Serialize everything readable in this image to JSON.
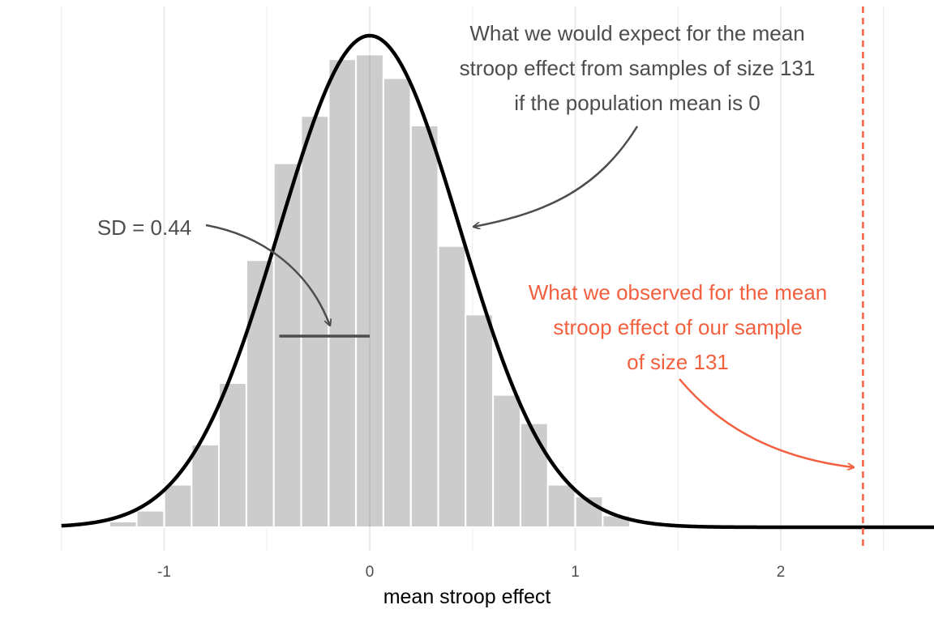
{
  "chart_data": {
    "type": "bar",
    "xlabel": "mean stroop effect",
    "ylabel": "",
    "title": "",
    "xlim": [
      -1.5,
      2.5
    ],
    "x_ticks": [
      -1,
      0,
      1,
      2
    ],
    "grid": true,
    "bin_width": 0.133,
    "bins": [
      {
        "x": -1.467,
        "value": 0.003
      },
      {
        "x": -1.2,
        "value": 0.012
      },
      {
        "x": -1.067,
        "value": 0.035
      },
      {
        "x": -0.933,
        "value": 0.09
      },
      {
        "x": -0.8,
        "value": 0.175
      },
      {
        "x": -0.667,
        "value": 0.305
      },
      {
        "x": -0.533,
        "value": 0.565
      },
      {
        "x": -0.4,
        "value": 0.77
      },
      {
        "x": -0.267,
        "value": 0.87
      },
      {
        "x": -0.133,
        "value": 0.99
      },
      {
        "x": 0.0,
        "value": 1.0
      },
      {
        "x": 0.133,
        "value": 0.95
      },
      {
        "x": 0.267,
        "value": 0.85
      },
      {
        "x": 0.4,
        "value": 0.595
      },
      {
        "x": 0.533,
        "value": 0.45
      },
      {
        "x": 0.667,
        "value": 0.28
      },
      {
        "x": 0.8,
        "value": 0.22
      },
      {
        "x": 0.933,
        "value": 0.09
      },
      {
        "x": 1.067,
        "value": 0.065
      },
      {
        "x": 1.2,
        "value": 0.025
      }
    ],
    "normal_curve": {
      "mean": 0,
      "sd": 0.44,
      "peak": 1.04
    },
    "sd_segment": {
      "from": -0.44,
      "to": 0
    },
    "observed_line": {
      "x": 2.4,
      "color": "#F2603F"
    },
    "annotations": {
      "sd_label": "SD = 0.44",
      "expected_lines": [
        "What we would expect for the mean",
        "stroop effect from samples of size 131",
        "if the population mean is 0"
      ],
      "observed_lines": [
        "What we observed for the mean",
        "stroop effect of our sample",
        "of size 131"
      ]
    }
  },
  "colors": {
    "bar": "#cccccc",
    "curve": "#000000",
    "annotation": "#4d4d4d",
    "observed": "#F2603F",
    "grid": "#ebebeb"
  }
}
